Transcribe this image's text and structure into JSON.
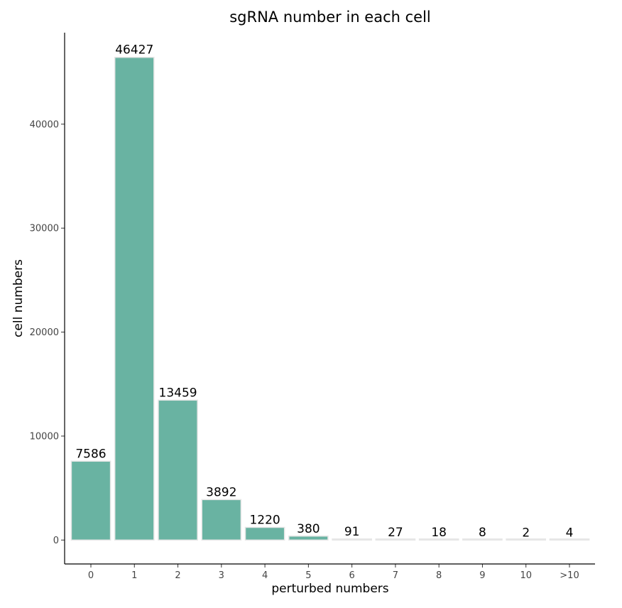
{
  "chart_data": {
    "type": "bar",
    "title": "sgRNA number in each cell",
    "xlabel": "perturbed numbers",
    "ylabel": "cell numbers",
    "categories": [
      "0",
      "1",
      "2",
      "3",
      "4",
      "5",
      "6",
      "7",
      "8",
      "9",
      "10",
      ">10"
    ],
    "values": [
      7586,
      46427,
      13459,
      3892,
      1220,
      380,
      91,
      27,
      18,
      8,
      2,
      4
    ],
    "data_labels": [
      "7586",
      "46427",
      "13459",
      "3892",
      "1220",
      "380",
      "91",
      "27",
      "18",
      "8",
      "2",
      "4"
    ],
    "yticks": [
      0,
      10000,
      20000,
      30000,
      40000
    ],
    "ylim": [
      -2300,
      48800
    ],
    "grid": false,
    "bar_color": "#69b3a2",
    "bar_outline_color": "#e6e6e6"
  }
}
